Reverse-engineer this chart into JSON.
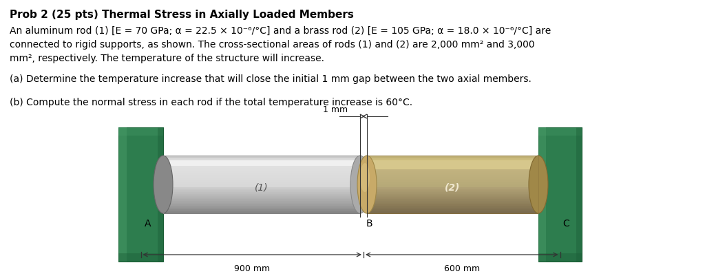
{
  "title": "Prob 2 (25 pts) Thermal Stress in Axially Loaded Members",
  "line1": "An aluminum rod (1) [E = 70 GPa; α = 22.5 × 10⁻⁶/°C] and a brass rod (2) [E = 105 GPa; α = 18.0 × 10⁻⁶/°C] are",
  "line2": "connected to rigid supports, as shown. The cross-sectional areas of rods (1) and (2) are 2,000 mm² and 3,000",
  "line3": "mm², respectively. The temperature of the structure will increase.",
  "line4": "(a) Determine the temperature increase that will close the initial 1 mm gap between the two axial members.",
  "line5": "(b) Compute the normal stress in each rod if the total temperature increase is 60°C.",
  "bg_color": "#ffffff",
  "text_color": "#000000",
  "wall_color": "#2d7d4e",
  "wall_dark": "#1a5c35",
  "wall_light": "#4a9e6a",
  "label_A": "A",
  "label_B": "B",
  "label_C": "C",
  "label_1": "(1)",
  "label_2": "(2)",
  "dim_1": "900 mm",
  "dim_2": "600 mm",
  "gap_label": "1 mm"
}
